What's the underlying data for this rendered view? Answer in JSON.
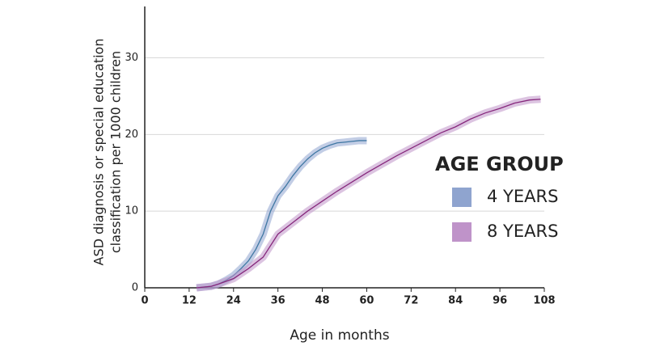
{
  "chart_data": {
    "type": "line",
    "xlabel": "Age in months",
    "ylabel": [
      "ASD diagnosis or special education",
      "classification per 1000 children"
    ],
    "legend_title": "AGE GROUP",
    "legend": "right",
    "grid": true,
    "xlim": [
      0,
      108
    ],
    "xticks": [
      0,
      12,
      24,
      36,
      48,
      60,
      72,
      84,
      96,
      108
    ],
    "ylim": [
      0,
      36.7
    ],
    "yticks": [
      0,
      10,
      20,
      30
    ],
    "series": [
      {
        "name": "4 YEARS",
        "color": "#8fa4cf",
        "line_color": "#3f77a3",
        "x": [
          14,
          18,
          20,
          22,
          24,
          26,
          28,
          30,
          32,
          33,
          34,
          36,
          38,
          40,
          42,
          44,
          46,
          48,
          50,
          52,
          54,
          56,
          58,
          60
        ],
        "values": [
          0,
          0.2,
          0.5,
          1,
          1.6,
          2.5,
          3.5,
          5,
          7,
          8.5,
          10,
          12,
          13.2,
          14.6,
          15.8,
          16.8,
          17.6,
          18.2,
          18.6,
          18.9,
          19,
          19.1,
          19.2,
          19.2
        ]
      },
      {
        "name": "8 YEARS",
        "color": "#bf93c9",
        "line_color": "#86287c",
        "x": [
          14,
          18,
          20,
          24,
          28,
          32,
          36,
          40,
          44,
          48,
          52,
          56,
          60,
          64,
          68,
          72,
          76,
          80,
          84,
          88,
          92,
          96,
          100,
          104,
          107
        ],
        "values": [
          0,
          0.2,
          0.5,
          1.2,
          2.5,
          4,
          7,
          8.5,
          10,
          11.3,
          12.6,
          13.8,
          15,
          16.1,
          17.2,
          18.2,
          19.2,
          20.2,
          21,
          22,
          22.8,
          23.4,
          24.1,
          24.5,
          24.6
        ]
      }
    ]
  }
}
